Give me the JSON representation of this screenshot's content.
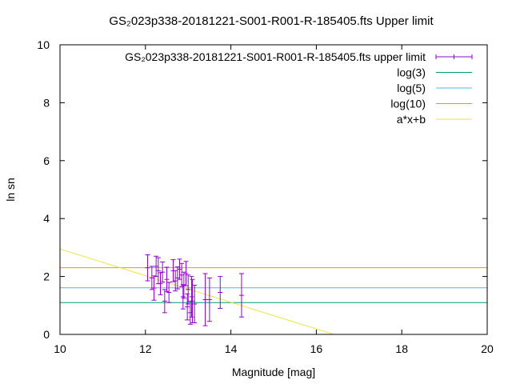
{
  "chart_data": {
    "type": "scatter",
    "title": "GS₂023p338-20181221-S001-R001-R-185405.fts Upper limit",
    "xlabel": "Magnitude [mag]",
    "ylabel": "ln sn",
    "xlim": [
      10,
      20
    ],
    "ylim": [
      0,
      10
    ],
    "x_ticks": [
      "10",
      "12",
      "14",
      "16",
      "18",
      "20"
    ],
    "y_ticks": [
      "0",
      "2",
      "4",
      "6",
      "8",
      "10"
    ],
    "grid": false,
    "legend_position": "top-right",
    "series": [
      {
        "name": "GS₂023p338-20181221-S001-R001-R-185405.fts upper limit",
        "style": "errorbars",
        "color": "#9400d3",
        "points": [
          {
            "x": 12.05,
            "y": 2.3,
            "err": 0.45
          },
          {
            "x": 12.15,
            "y": 1.95,
            "err": 0.4
          },
          {
            "x": 12.2,
            "y": 1.6,
            "err": 0.42
          },
          {
            "x": 12.25,
            "y": 2.35,
            "err": 0.35
          },
          {
            "x": 12.3,
            "y": 2.2,
            "err": 0.45
          },
          {
            "x": 12.35,
            "y": 1.75,
            "err": 0.38
          },
          {
            "x": 12.4,
            "y": 2.15,
            "err": 0.35
          },
          {
            "x": 12.45,
            "y": 1.15,
            "err": 0.4
          },
          {
            "x": 12.5,
            "y": 1.9,
            "err": 0.42
          },
          {
            "x": 12.55,
            "y": 1.45,
            "err": 0.35
          },
          {
            "x": 12.65,
            "y": 2.2,
            "err": 0.38
          },
          {
            "x": 12.7,
            "y": 1.85,
            "err": 0.35
          },
          {
            "x": 12.75,
            "y": 1.95,
            "err": 0.38
          },
          {
            "x": 12.8,
            "y": 2.25,
            "err": 0.35
          },
          {
            "x": 12.85,
            "y": 2.05,
            "err": 0.4
          },
          {
            "x": 12.88,
            "y": 1.3,
            "err": 0.42
          },
          {
            "x": 12.9,
            "y": 1.7,
            "err": 0.45
          },
          {
            "x": 12.95,
            "y": 2.1,
            "err": 0.42
          },
          {
            "x": 12.98,
            "y": 0.95,
            "err": 0.45
          },
          {
            "x": 13.0,
            "y": 1.55,
            "err": 0.5
          },
          {
            "x": 13.05,
            "y": 0.75,
            "err": 0.4
          },
          {
            "x": 13.08,
            "y": 1.3,
            "err": 0.7
          },
          {
            "x": 13.1,
            "y": 1.15,
            "err": 0.75
          },
          {
            "x": 13.15,
            "y": 1.05,
            "err": 0.65
          },
          {
            "x": 13.4,
            "y": 1.2,
            "err": 0.9
          },
          {
            "x": 13.5,
            "y": 1.2,
            "err": 0.75
          },
          {
            "x": 13.75,
            "y": 1.45,
            "err": 0.55
          },
          {
            "x": 14.25,
            "y": 1.35,
            "err": 0.75
          }
        ]
      },
      {
        "name": "log(3)",
        "style": "hline",
        "color": "#009e73",
        "value": 1.0986
      },
      {
        "name": "log(5)",
        "style": "hline",
        "color": "#56b4e9",
        "value": 1.6094
      },
      {
        "name": "log(10)",
        "style": "hline",
        "color": "#e69f00",
        "value": 2.3026
      },
      {
        "name": "a*x+b",
        "style": "line",
        "color": "#f0e442",
        "slope": -0.46,
        "intercept": 7.55
      }
    ]
  }
}
